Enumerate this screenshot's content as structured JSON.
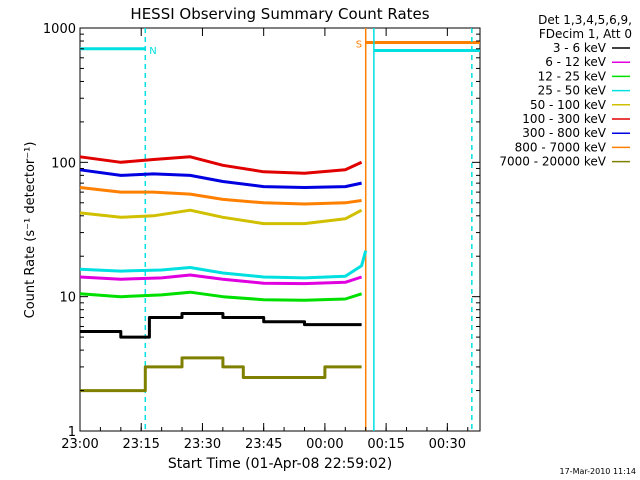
{
  "chart_data": {
    "type": "line",
    "title": "HESSI Observing Summary Count Rates",
    "xlabel": "Start Time (01-Apr-08 22:59:02)",
    "ylabel": "Count Rate (s⁻¹ detector⁻¹)",
    "y_scale": "log",
    "ylim": [
      1,
      1000
    ],
    "x_axis": {
      "start": "23:00",
      "end": "00:38",
      "unit": "minutes"
    },
    "xticks": [
      "23:00",
      "23:15",
      "23:30",
      "23:45",
      "00:00",
      "00:15",
      "00:30"
    ],
    "yticks": [
      "1",
      "10",
      "100",
      "1000"
    ],
    "legend_header": [
      "Det 1,3,4,5,6,9,",
      "FDecim 1, Att 0"
    ],
    "legend_placement": "top-right outside",
    "footer_date": "17-Mar-2010 11:14",
    "series": [
      {
        "name": "3 - 6 keV",
        "color": "#000000",
        "points": [
          [
            "23:00",
            5.5
          ],
          [
            "23:10",
            5
          ],
          [
            "23:16",
            5
          ],
          [
            "23:17",
            7
          ],
          [
            "23:25",
            7.5
          ],
          [
            "23:35",
            7
          ],
          [
            "23:45",
            6.5
          ],
          [
            "23:55",
            6.2
          ],
          [
            "00:05",
            6.2
          ],
          [
            "00:09",
            6.2
          ]
        ]
      },
      {
        "name": "6 - 12 keV",
        "color": "#e000e0",
        "points": [
          [
            "23:00",
            14
          ],
          [
            "23:10",
            13.5
          ],
          [
            "23:20",
            13.8
          ],
          [
            "23:27",
            14.5
          ],
          [
            "23:35",
            13.5
          ],
          [
            "23:45",
            12.6
          ],
          [
            "23:55",
            12.5
          ],
          [
            "00:05",
            12.8
          ],
          [
            "00:09",
            14
          ]
        ]
      },
      {
        "name": "12 - 25 keV",
        "color": "#00e000",
        "points": [
          [
            "23:00",
            10.5
          ],
          [
            "23:10",
            10
          ],
          [
            "23:20",
            10.3
          ],
          [
            "23:27",
            10.8
          ],
          [
            "23:35",
            10
          ],
          [
            "23:45",
            9.5
          ],
          [
            "23:55",
            9.4
          ],
          [
            "00:05",
            9.6
          ],
          [
            "00:09",
            10.5
          ]
        ]
      },
      {
        "name": "25 - 50 keV",
        "color": "#00e0e0",
        "points": [
          [
            "23:00",
            16
          ],
          [
            "23:10",
            15.5
          ],
          [
            "23:20",
            15.8
          ],
          [
            "23:27",
            16.5
          ],
          [
            "23:35",
            15
          ],
          [
            "23:45",
            14
          ],
          [
            "23:55",
            13.8
          ],
          [
            "00:05",
            14.2
          ],
          [
            "00:09",
            17
          ],
          [
            "00:10",
            22
          ]
        ]
      },
      {
        "name": "50 - 100 keV",
        "color": "#d0c000",
        "points": [
          [
            "23:00",
            42
          ],
          [
            "23:10",
            39
          ],
          [
            "23:18",
            40
          ],
          [
            "23:27",
            44
          ],
          [
            "23:35",
            39
          ],
          [
            "23:45",
            35
          ],
          [
            "23:55",
            35
          ],
          [
            "00:05",
            38
          ],
          [
            "00:09",
            44
          ]
        ]
      },
      {
        "name": "100 - 300 keV",
        "color": "#e00000",
        "points": [
          [
            "23:00",
            110
          ],
          [
            "23:10",
            100
          ],
          [
            "23:18",
            105
          ],
          [
            "23:27",
            110
          ],
          [
            "23:35",
            95
          ],
          [
            "23:45",
            85
          ],
          [
            "23:55",
            83
          ],
          [
            "00:05",
            88
          ],
          [
            "00:09",
            100
          ]
        ]
      },
      {
        "name": "300 - 800 keV",
        "color": "#0000e0",
        "points": [
          [
            "23:00",
            88
          ],
          [
            "23:10",
            80
          ],
          [
            "23:18",
            82
          ],
          [
            "23:27",
            80
          ],
          [
            "23:35",
            72
          ],
          [
            "23:45",
            66
          ],
          [
            "23:55",
            65
          ],
          [
            "00:05",
            66
          ],
          [
            "00:09",
            70
          ]
        ]
      },
      {
        "name": "800 - 7000 keV",
        "color": "#ff8000",
        "points": [
          [
            "23:00",
            65
          ],
          [
            "23:10",
            60
          ],
          [
            "23:18",
            60
          ],
          [
            "23:27",
            58
          ],
          [
            "23:35",
            53
          ],
          [
            "23:45",
            50
          ],
          [
            "23:55",
            49
          ],
          [
            "00:05",
            50
          ],
          [
            "00:09",
            52
          ]
        ]
      },
      {
        "name": "7000 - 20000 keV",
        "color": "#808000",
        "points": [
          [
            "23:00",
            2
          ],
          [
            "23:08",
            2
          ],
          [
            "23:15",
            2
          ],
          [
            "23:16",
            3
          ],
          [
            "23:25",
            3.5
          ],
          [
            "23:35",
            3
          ],
          [
            "23:40",
            2.5
          ],
          [
            "23:50",
            2.5
          ],
          [
            "00:00",
            3
          ],
          [
            "00:09",
            3
          ]
        ]
      }
    ],
    "flags": [
      {
        "label": "N",
        "color": "#00e0e0",
        "level": 700,
        "from": "23:00",
        "to": "23:16",
        "boundaries": [
          {
            "time": "23:16",
            "style": "dashed"
          }
        ]
      },
      {
        "label": "S",
        "color": "#ff8000",
        "level": 780,
        "from": "00:10",
        "to": "00:38",
        "boundaries": [
          {
            "time": "00:10",
            "style": "solid"
          }
        ]
      },
      {
        "label": "",
        "color": "#00e0e0",
        "level": 680,
        "from": "00:12",
        "to": "00:38",
        "boundaries": [
          {
            "time": "00:12",
            "style": "solid"
          },
          {
            "time": "00:36",
            "style": "dashed"
          }
        ]
      }
    ]
  }
}
